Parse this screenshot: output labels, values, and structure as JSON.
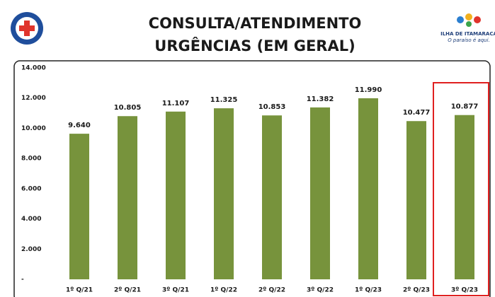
{
  "chart_data": {
    "type": "bar",
    "title": [
      "CONSULTA/ATENDIMENTO",
      "URGÊNCIAS (EM GERAL)"
    ],
    "logo_text": [
      "ILHA DE ITAMARACÁ",
      "O paraíso é aqui."
    ],
    "categories": [
      "1º Q/21",
      "2º Q/21",
      "3º Q/21",
      "1º Q/22",
      "2º Q/22",
      "3º Q/22",
      "1º Q/23",
      "2º Q/23",
      "3º Q/23"
    ],
    "values": [
      9640,
      10805,
      11107,
      11325,
      10853,
      11382,
      11990,
      10477,
      10877
    ],
    "value_labels": [
      "9.640",
      "10.805",
      "11.107",
      "11.325",
      "10.853",
      "11.382",
      "11.990",
      "10.477",
      "10.877"
    ],
    "color": "#77933c",
    "ylim": [
      0,
      14000
    ],
    "yticks": [
      {
        "value": 0,
        "label": "-"
      },
      {
        "value": 2000,
        "label": "2.000"
      },
      {
        "value": 4000,
        "label": "4.000"
      },
      {
        "value": 6000,
        "label": "6.000"
      },
      {
        "value": 8000,
        "label": "8.000"
      },
      {
        "value": 10000,
        "label": "10.000"
      },
      {
        "value": 12000,
        "label": "12.000"
      },
      {
        "value": 14000,
        "label": "14.000"
      }
    ],
    "grid": false
  }
}
